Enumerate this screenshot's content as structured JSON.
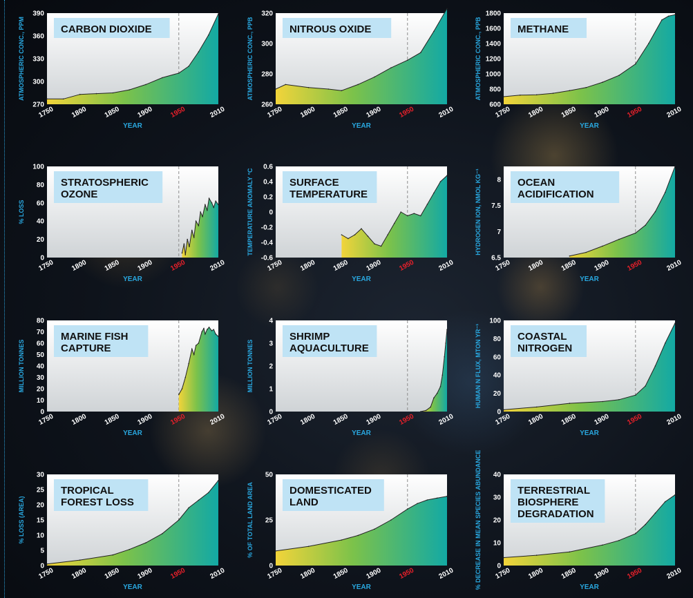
{
  "colors": {
    "title_box": "#bfe3f5",
    "axis_label": "#29a8e0",
    "highlight_year": "#e8202a",
    "fill_start": "#f2d43a",
    "fill_mid": "#7cc24a",
    "fill_end": "#13a9a4"
  },
  "chart_data": [
    {
      "id": "co2",
      "type": "area",
      "title_lines": [
        "CARBON DIOXIDE"
      ],
      "xlabel": "YEAR",
      "ylabel": "ATMOSPHERIC CONC., PPM",
      "ylim": [
        270,
        390
      ],
      "yticks": [
        270,
        300,
        330,
        360,
        390
      ],
      "xlim": [
        1750,
        2010
      ],
      "xticks": [
        "1750",
        "1800",
        "1850",
        "1900",
        "1950",
        "2010"
      ],
      "highlight_tick": "1950",
      "x": [
        1750,
        1775,
        1800,
        1825,
        1850,
        1875,
        1900,
        1925,
        1950,
        1965,
        1980,
        1995,
        2010
      ],
      "y": [
        277,
        277,
        283,
        284,
        285,
        289,
        296,
        305,
        311,
        320,
        339,
        361,
        389
      ]
    },
    {
      "id": "n2o",
      "type": "area",
      "title_lines": [
        "NITROUS OXIDE"
      ],
      "xlabel": "YEAR",
      "ylabel": "ATMOSPHERIC CONC., PPB",
      "ylim": [
        260,
        320
      ],
      "yticks": [
        260,
        280,
        300,
        320
      ],
      "xlim": [
        1750,
        2010
      ],
      "xticks": [
        "1750",
        "1800",
        "1850",
        "1900",
        "1950",
        "2010"
      ],
      "highlight_tick": "1950",
      "x": [
        1750,
        1765,
        1800,
        1830,
        1850,
        1875,
        1900,
        1925,
        1950,
        1970,
        1990,
        2010
      ],
      "y": [
        270,
        273,
        271,
        270,
        269,
        273,
        278,
        284,
        289,
        294,
        308,
        323
      ]
    },
    {
      "id": "ch4",
      "type": "area",
      "title_lines": [
        "METHANE"
      ],
      "xlabel": "YEAR",
      "ylabel": "ATMOSPHERIC CONC., PPB",
      "ylim": [
        600,
        1800
      ],
      "yticks": [
        600,
        800,
        1000,
        1200,
        1400,
        1600,
        1800
      ],
      "xlim": [
        1750,
        2010
      ],
      "xticks": [
        "1750",
        "1800",
        "1850",
        "1900",
        "1950",
        "2010"
      ],
      "highlight_tick": "1950",
      "x": [
        1750,
        1775,
        1800,
        1825,
        1850,
        1875,
        1900,
        1925,
        1950,
        1970,
        1990,
        2000,
        2010
      ],
      "y": [
        700,
        720,
        725,
        745,
        780,
        820,
        890,
        980,
        1130,
        1400,
        1710,
        1760,
        1780
      ]
    },
    {
      "id": "ozone",
      "type": "area",
      "title_lines": [
        "STRATOSPHERIC",
        "OZONE"
      ],
      "xlabel": "YEAR",
      "ylabel": "% LOSS",
      "ylim": [
        0,
        100
      ],
      "yticks": [
        0,
        20,
        40,
        60,
        80,
        100
      ],
      "xlim": [
        1750,
        2010
      ],
      "xticks": [
        "1750",
        "1800",
        "1850",
        "1900",
        "1950",
        "2010"
      ],
      "highlight_tick": "1950",
      "x": [
        1955,
        1958,
        1960,
        1963,
        1966,
        1970,
        1973,
        1976,
        1980,
        1983,
        1986,
        1990,
        1993,
        1996,
        2000,
        2003,
        2006,
        2010
      ],
      "y": [
        5,
        15,
        3,
        20,
        12,
        30,
        22,
        40,
        35,
        50,
        45,
        58,
        52,
        65,
        60,
        55,
        62,
        58
      ]
    },
    {
      "id": "temp",
      "type": "area",
      "title_lines": [
        "SURFACE",
        "TEMPERATURE"
      ],
      "xlabel": "YEAR",
      "ylabel": "TEMPERATURE ANOMALY °C",
      "ylim": [
        -0.6,
        0.6
      ],
      "yticks": [
        -0.6,
        -0.4,
        -0.2,
        0,
        0.2,
        0.4,
        0.6
      ],
      "xlim": [
        1750,
        2010
      ],
      "xticks": [
        "1750",
        "1800",
        "1850",
        "1900",
        "1950",
        "2010"
      ],
      "highlight_tick": "1950",
      "x": [
        1850,
        1860,
        1870,
        1880,
        1890,
        1900,
        1910,
        1920,
        1930,
        1940,
        1950,
        1960,
        1970,
        1980,
        1990,
        2000,
        2010
      ],
      "y": [
        -0.3,
        -0.35,
        -0.3,
        -0.22,
        -0.32,
        -0.42,
        -0.45,
        -0.3,
        -0.15,
        0.0,
        -0.05,
        -0.02,
        -0.05,
        0.1,
        0.25,
        0.4,
        0.48
      ]
    },
    {
      "id": "ocean",
      "type": "area",
      "title_lines": [
        "OCEAN",
        "ACIDIFICATION"
      ],
      "xlabel": "YEAR",
      "ylabel": "HYDROGEN ION, NMOL KG⁻¹",
      "ylim": [
        6.5,
        8.25
      ],
      "yticks": [
        6.5,
        7.0,
        7.5,
        8.0
      ],
      "xlim": [
        1750,
        2010
      ],
      "xticks": [
        "1750",
        "1800",
        "1850",
        "1900",
        "1950",
        "2010"
      ],
      "highlight_tick": "1950",
      "x": [
        1850,
        1875,
        1900,
        1925,
        1950,
        1965,
        1980,
        1995,
        2010
      ],
      "y": [
        6.53,
        6.6,
        6.72,
        6.85,
        6.97,
        7.12,
        7.38,
        7.75,
        8.25
      ]
    },
    {
      "id": "fish",
      "type": "area",
      "title_lines": [
        "MARINE FISH",
        "CAPTURE"
      ],
      "xlabel": "YEAR",
      "ylabel": "MILLION TONNES",
      "ylim": [
        0,
        80
      ],
      "yticks": [
        0,
        10,
        20,
        30,
        40,
        50,
        60,
        70,
        80
      ],
      "xlim": [
        1750,
        2010
      ],
      "xticks": [
        "1750",
        "1800",
        "1850",
        "1900",
        "1950",
        "2010"
      ],
      "highlight_tick": "1950",
      "x": [
        1950,
        1955,
        1960,
        1965,
        1970,
        1973,
        1976,
        1980,
        1985,
        1988,
        1990,
        1993,
        1996,
        2000,
        2003,
        2006,
        2010
      ],
      "y": [
        15,
        20,
        30,
        42,
        55,
        50,
        58,
        60,
        70,
        73,
        68,
        72,
        74,
        71,
        72,
        68,
        66
      ]
    },
    {
      "id": "shrimp",
      "type": "area",
      "title_lines": [
        "SHRIMP",
        "AQUACULTURE"
      ],
      "xlabel": "YEAR",
      "ylabel": "MILLION TONNES",
      "ylim": [
        0,
        4
      ],
      "yticks": [
        0,
        1,
        2,
        3,
        4
      ],
      "xlim": [
        1750,
        2010
      ],
      "xticks": [
        "1750",
        "1800",
        "1850",
        "1900",
        "1950",
        "2010"
      ],
      "highlight_tick": "1950",
      "x": [
        1970,
        1978,
        1985,
        1990,
        1995,
        2000,
        2003,
        2006,
        2008,
        2010
      ],
      "y": [
        0,
        0.05,
        0.2,
        0.6,
        0.8,
        1.1,
        1.6,
        2.4,
        3.0,
        3.6
      ]
    },
    {
      "id": "nitrogen",
      "type": "area",
      "title_lines": [
        "COASTAL",
        "NITROGEN"
      ],
      "xlabel": "YEAR",
      "ylabel": "HUMAN N FLUX, MTON YR⁻¹",
      "ylim": [
        0,
        100
      ],
      "yticks": [
        0,
        20,
        40,
        60,
        80,
        100
      ],
      "xlim": [
        1750,
        2010
      ],
      "xticks": [
        "1750",
        "1800",
        "1850",
        "1900",
        "1950",
        "2010"
      ],
      "highlight_tick": "1950",
      "x": [
        1750,
        1800,
        1850,
        1900,
        1925,
        1950,
        1965,
        1980,
        1995,
        2010
      ],
      "y": [
        2,
        5,
        9,
        11,
        13,
        18,
        28,
        50,
        75,
        97
      ]
    },
    {
      "id": "forest",
      "type": "area",
      "title_lines": [
        "TROPICAL",
        "FOREST LOSS"
      ],
      "xlabel": "YEAR",
      "ylabel": "% LOSS (AREA)",
      "ylim": [
        0,
        30
      ],
      "yticks": [
        0,
        5,
        10,
        15,
        20,
        25,
        30
      ],
      "xlim": [
        1750,
        2010
      ],
      "xticks": [
        "1750",
        "1800",
        "1850",
        "1900",
        "1950",
        "2010"
      ],
      "highlight_tick": "1950",
      "x": [
        1750,
        1800,
        1850,
        1875,
        1900,
        1925,
        1950,
        1965,
        1980,
        1995,
        2010
      ],
      "y": [
        0.5,
        1.8,
        3.5,
        5.3,
        7.5,
        10.5,
        15,
        19,
        21.5,
        24,
        28
      ]
    },
    {
      "id": "land",
      "type": "area",
      "title_lines": [
        "DOMESTICATED",
        "LAND"
      ],
      "xlabel": "YEAR",
      "ylabel": "% OF TOTAL LAND AREA",
      "ylim": [
        0,
        50
      ],
      "yticks": [
        0,
        25,
        50
      ],
      "xlim": [
        1750,
        2010
      ],
      "xticks": [
        "1750",
        "1800",
        "1850",
        "1900",
        "1950",
        "2010"
      ],
      "highlight_tick": "1950",
      "x": [
        1750,
        1800,
        1850,
        1875,
        1900,
        1925,
        1950,
        1965,
        1980,
        1995,
        2010
      ],
      "y": [
        8,
        10.5,
        14,
        16.5,
        20,
        25,
        31,
        34,
        36,
        37,
        38
      ]
    },
    {
      "id": "biosphere",
      "type": "area",
      "title_lines": [
        "TERRESTRIAL",
        "BIOSPHERE",
        "DEGRADATION"
      ],
      "xlabel": "YEAR",
      "ylabel": "% DECREASE IN MEAN SPECIES ABUNDANCE",
      "ylim": [
        0,
        40
      ],
      "yticks": [
        0,
        10,
        20,
        30,
        40
      ],
      "xlim": [
        1750,
        2010
      ],
      "xticks": [
        "1750",
        "1800",
        "1850",
        "1900",
        "1950",
        "2010"
      ],
      "highlight_tick": "1950",
      "x": [
        1750,
        1800,
        1850,
        1900,
        1925,
        1950,
        1965,
        1980,
        1995,
        2010
      ],
      "y": [
        3.5,
        4.5,
        6,
        9,
        11,
        14,
        18,
        23,
        28,
        31
      ]
    }
  ]
}
